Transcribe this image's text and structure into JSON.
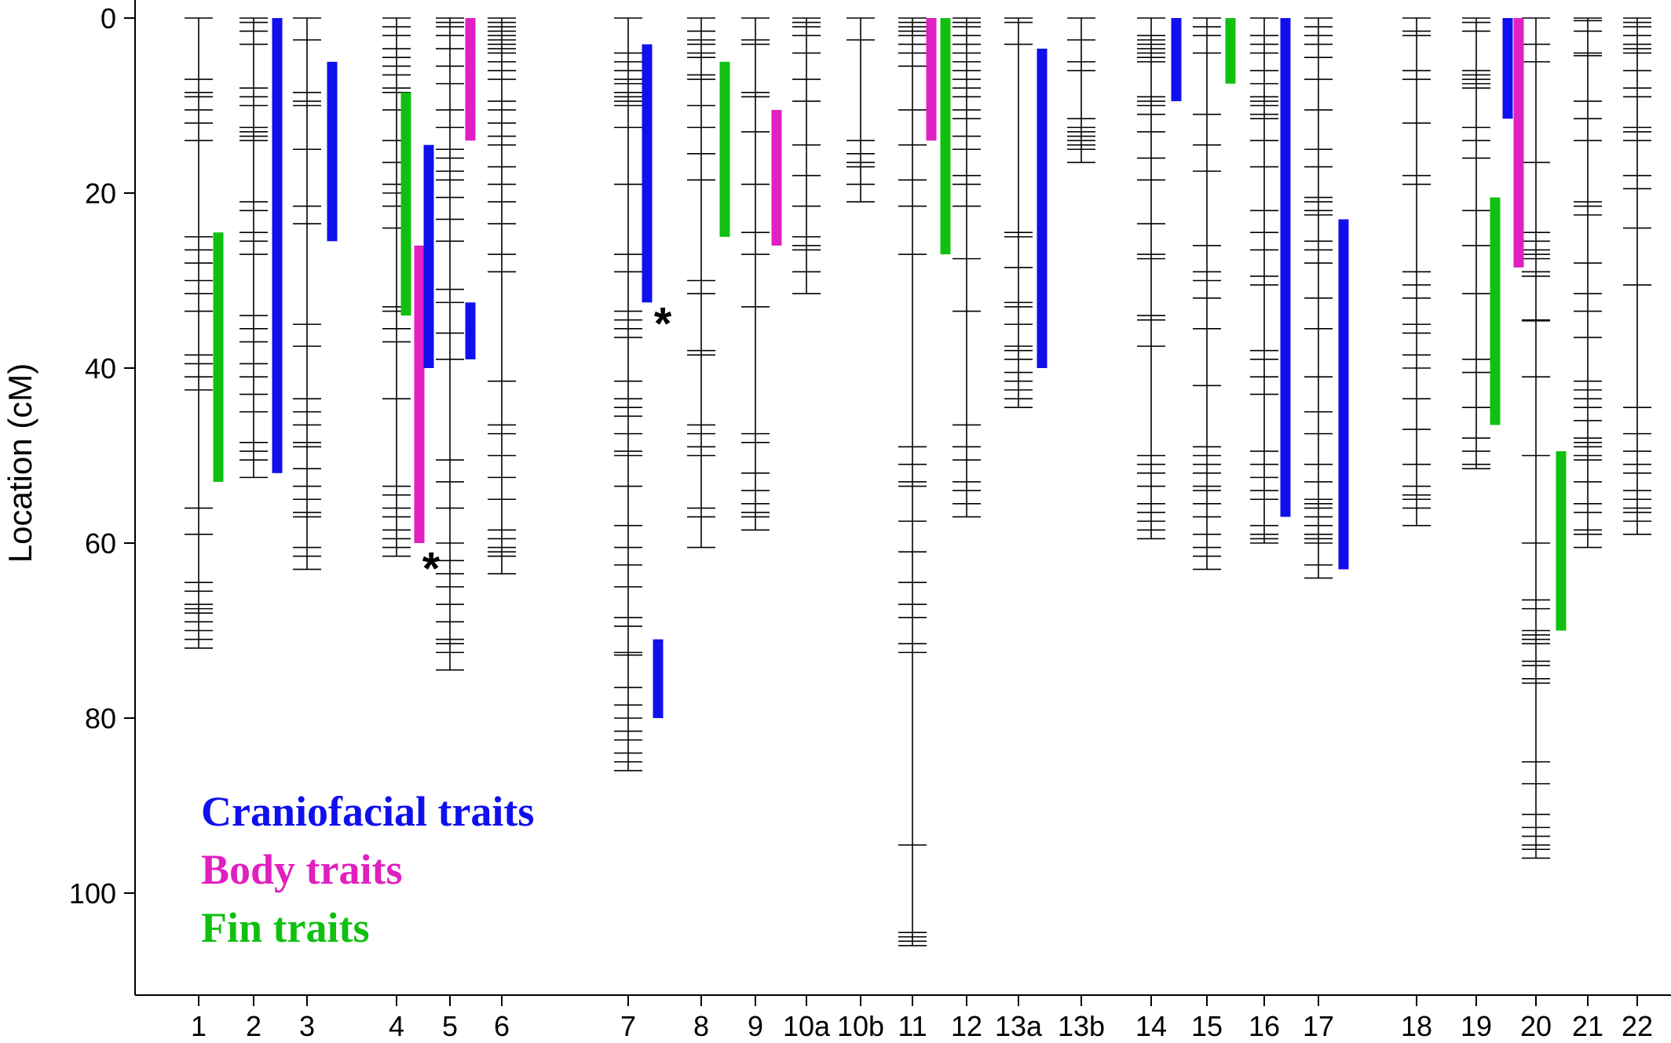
{
  "chart_data": {
    "type": "linkage-map",
    "ylabel": "Location (cM)",
    "yticks": [
      0,
      20,
      40,
      60,
      80,
      100
    ],
    "ylim": [
      0,
      111
    ],
    "colors": {
      "Craniofacial traits": "#1010ee",
      "Body traits": "#e020c0",
      "Fin traits": "#10c010"
    },
    "legend": [
      {
        "label": "Craniofacial traits",
        "color": "#1010ee"
      },
      {
        "label": "Body traits",
        "color": "#e020c0"
      },
      {
        "label": "Fin traits",
        "color": "#10c010"
      }
    ],
    "linkage_groups": [
      {
        "name": "1",
        "length": 72,
        "markers": [
          0,
          7,
          8.5,
          9,
          10.5,
          12,
          14,
          25,
          26.5,
          28,
          30,
          31.5,
          33.5,
          38.5,
          39.5,
          41,
          42.5,
          56,
          59,
          64.5,
          65.5,
          67,
          67.5,
          68,
          69,
          70,
          71,
          72
        ]
      },
      {
        "name": "2",
        "length": 52.5,
        "markers": [
          0,
          0.5,
          1.5,
          3,
          8,
          9,
          10,
          12.5,
          13,
          13.5,
          14,
          21,
          22,
          24.5,
          25.5,
          27,
          34,
          35.5,
          37,
          39.5,
          41,
          43,
          45,
          48.5,
          49.5,
          50.5,
          52.5
        ]
      },
      {
        "name": "3",
        "length": 63,
        "markers": [
          0,
          2.5,
          8.5,
          9.5,
          10,
          15,
          21.5,
          23.5,
          35,
          37.5,
          43.5,
          45,
          46.5,
          48.5,
          49,
          51.5,
          53.5,
          55,
          56.5,
          57,
          60.5,
          61.5,
          63
        ]
      },
      {
        "name": "4",
        "length": 61.5,
        "markers": [
          0,
          1,
          2,
          3.5,
          4.5,
          5.5,
          6.5,
          8,
          8.5,
          10.5,
          14,
          16.5,
          19,
          20,
          21.5,
          24,
          33,
          33.5,
          35.5,
          37,
          43.5,
          53.5,
          54.5,
          56,
          57,
          58.5,
          59.5,
          60.5,
          61.5
        ]
      },
      {
        "name": "5",
        "length": 74.5,
        "markers": [
          0,
          0.5,
          1,
          2,
          3.5,
          5.5,
          7.5,
          10.5,
          12.5,
          15,
          16,
          17.5,
          18.5,
          20.5,
          23,
          25.5,
          31,
          32.5,
          36,
          39,
          50.5,
          53,
          56,
          60,
          62,
          63.5,
          65,
          67,
          69,
          71,
          71.5,
          72.5,
          74.5
        ]
      },
      {
        "name": "6",
        "length": 63.5,
        "markers": [
          0,
          0.5,
          1,
          1.5,
          2,
          2.5,
          3,
          3.5,
          4,
          5,
          6,
          7,
          9.5,
          10.5,
          12,
          13.5,
          14.5,
          17,
          19,
          21,
          23.5,
          27,
          29,
          41.5,
          46.5,
          47.5,
          50,
          52.5,
          55,
          58.5,
          59.5,
          60.5,
          61,
          61.5,
          63.5
        ]
      },
      {
        "name": "7",
        "length": 86,
        "markers": [
          0,
          4,
          5,
          6,
          7,
          7.5,
          8.5,
          9,
          9.5,
          10,
          12.5,
          19,
          27,
          29,
          33.5,
          34.5,
          35.5,
          36.5,
          41.5,
          43.5,
          44.5,
          45.5,
          47.5,
          49.5,
          50,
          53.5,
          58,
          60.5,
          62.5,
          65,
          68.5,
          69.5,
          72.5,
          72.8,
          76.5,
          78.5,
          80,
          81.5,
          82.5,
          84,
          85,
          86
        ]
      },
      {
        "name": "8",
        "length": 60.5,
        "markers": [
          0,
          1.5,
          2.5,
          3,
          4,
          4.5,
          6.5,
          7,
          10,
          12.5,
          15.5,
          18.5,
          30,
          31.5,
          38,
          38.5,
          46.5,
          47.5,
          49,
          50,
          56,
          57,
          60.5
        ]
      },
      {
        "name": "9",
        "length": 58.5,
        "markers": [
          0,
          2.5,
          3,
          8.5,
          9,
          13,
          19,
          24.5,
          27,
          33,
          47.5,
          48.5,
          52,
          54,
          55.5,
          56.5,
          57,
          58.5
        ]
      },
      {
        "name": "10a",
        "length": 31.5,
        "markers": [
          0,
          0.5,
          1,
          2,
          4,
          7,
          9.5,
          14.5,
          18,
          21.5,
          25,
          26,
          26.5,
          29,
          31.5
        ]
      },
      {
        "name": "10b",
        "length": 21,
        "markers": [
          0,
          2.5,
          14,
          15.5,
          16.5,
          17,
          19,
          21
        ]
      },
      {
        "name": "11",
        "length": 106,
        "markers": [
          0,
          0.5,
          1,
          1.5,
          2,
          3,
          4,
          5.5,
          10.5,
          14.5,
          18.5,
          21.5,
          27,
          49,
          51,
          53,
          53.5,
          57.5,
          61,
          64.5,
          67,
          68.5,
          71.5,
          72.5,
          94.5,
          104.5,
          105,
          105.5,
          106
        ]
      },
      {
        "name": "12",
        "length": 57,
        "markers": [
          0,
          0.5,
          1,
          2,
          3,
          4,
          5,
          6,
          7,
          8,
          9,
          10.5,
          11.5,
          13.5,
          15,
          18,
          19,
          21.5,
          27.5,
          33.5,
          46.5,
          49,
          50.5,
          53,
          54,
          55.5,
          57
        ]
      },
      {
        "name": "13a",
        "length": 44.5,
        "markers": [
          0,
          0.5,
          3,
          24.5,
          25,
          28.5,
          32.5,
          33,
          35,
          37.5,
          38,
          39,
          40.5,
          41.5,
          42.5,
          43.5,
          44.5
        ]
      },
      {
        "name": "13b",
        "length": 16.5,
        "markers": [
          0,
          2.5,
          5,
          6,
          11.5,
          12.5,
          13,
          13.5,
          14,
          14.5,
          15,
          16.5
        ]
      },
      {
        "name": "14",
        "length": 59.5,
        "markers": [
          0,
          2,
          2.5,
          3,
          3.5,
          4,
          4.5,
          5,
          9,
          9.5,
          10,
          11,
          13,
          16,
          18.5,
          23.5,
          27,
          27.5,
          34,
          34.5,
          37.5,
          50,
          51,
          52,
          53.5,
          55.5,
          56.5,
          57.5,
          58.5,
          59.5
        ]
      },
      {
        "name": "15",
        "length": 63,
        "markers": [
          0,
          1,
          2,
          4,
          11,
          14.5,
          17.5,
          26,
          29,
          30,
          32,
          35.5,
          42,
          49,
          50,
          51,
          52,
          53.5,
          54,
          55.5,
          57,
          59,
          60.5,
          61.5,
          63
        ]
      },
      {
        "name": "16",
        "length": 60,
        "markers": [
          0,
          2,
          3,
          4,
          6,
          7.5,
          9,
          9.5,
          10,
          11,
          11.5,
          14,
          17,
          22,
          24.5,
          26.5,
          29.5,
          30.5,
          38,
          39,
          41,
          43,
          49.5,
          51,
          52.5,
          54,
          55,
          58,
          59,
          59.5,
          60
        ]
      },
      {
        "name": "17",
        "length": 64,
        "markers": [
          0,
          1,
          2,
          3,
          4.5,
          7,
          10.5,
          15,
          17,
          20.5,
          21,
          22,
          22.5,
          25.5,
          26.5,
          28,
          32,
          35.5,
          41,
          45,
          47.5,
          51,
          53,
          55,
          55.5,
          56,
          57,
          58,
          59,
          59.5,
          60,
          62.5,
          64
        ]
      },
      {
        "name": "18",
        "length": 58,
        "markers": [
          0,
          1.5,
          2,
          6,
          7,
          12,
          18,
          19,
          29,
          30.5,
          32,
          35,
          36,
          38.5,
          40,
          43.5,
          47,
          51,
          53.5,
          54.5,
          55,
          56,
          58
        ]
      },
      {
        "name": "19",
        "length": 51.5,
        "markers": [
          0,
          0.5,
          1.5,
          6,
          6.5,
          7,
          7.5,
          8,
          12.5,
          14,
          16,
          22,
          26,
          31.5,
          39,
          40.5,
          44.5,
          48,
          49.5,
          51,
          51.5
        ]
      },
      {
        "name": "20",
        "length": 96,
        "markers": [
          0,
          3,
          5,
          16.5,
          24.5,
          25.5,
          26.5,
          27,
          27.5,
          29,
          29.5,
          34.5,
          34.6,
          41,
          50,
          60,
          66.5,
          67.5,
          70,
          70.5,
          71,
          71.5,
          73.5,
          74,
          75.5,
          76,
          85,
          87.5,
          91,
          92.5,
          93.5,
          94.5,
          95,
          96
        ]
      },
      {
        "name": "21",
        "length": 60.5,
        "markers": [
          0,
          0.3,
          1.5,
          4,
          4.3,
          9.5,
          11.5,
          14,
          21,
          21.5,
          22.5,
          28,
          31.5,
          33.5,
          36.5,
          41.5,
          42.5,
          43.5,
          44.5,
          46,
          48,
          48.5,
          49,
          50,
          50.5,
          53,
          55.5,
          56.5,
          58.5,
          59,
          60.5
        ]
      },
      {
        "name": "22",
        "length": 59,
        "markers": [
          0,
          0.5,
          1,
          2,
          3,
          3.5,
          4,
          6,
          8,
          9,
          12.5,
          13,
          14,
          18,
          19.5,
          24,
          30.5,
          44.5,
          47.5,
          49.5,
          51,
          52,
          54,
          55,
          56,
          56.5,
          57.5,
          59
        ]
      }
    ],
    "qtl_bars": [
      {
        "group": "1",
        "trait": "Fin traits",
        "from": 24.5,
        "to": 53
      },
      {
        "group": "2",
        "trait": "Craniofacial traits",
        "from": 0,
        "to": 52
      },
      {
        "group": "3",
        "trait": "Craniofacial traits",
        "from": 5,
        "to": 25.5
      },
      {
        "group": "4",
        "trait": "Fin traits",
        "from": 8.5,
        "to": 34,
        "slot": 1
      },
      {
        "group": "4",
        "trait": "Body traits",
        "from": 26,
        "to": 60,
        "slot": 2
      },
      {
        "group": "4",
        "trait": "Craniofacial traits",
        "from": 14.5,
        "to": 40,
        "slot": 3
      },
      {
        "group": "5",
        "trait": "Body traits",
        "from": 0,
        "to": 14
      },
      {
        "group": "5",
        "trait": "Craniofacial traits",
        "from": 32.5,
        "to": 39
      },
      {
        "group": "7",
        "trait": "Craniofacial traits",
        "from": 3,
        "to": 32.5,
        "slot": 1
      },
      {
        "group": "7",
        "trait": "Craniofacial traits",
        "from": 71,
        "to": 80,
        "slot": 2
      },
      {
        "group": "8",
        "trait": "Fin traits",
        "from": 5,
        "to": 25
      },
      {
        "group": "9",
        "trait": "Body traits",
        "from": 10.5,
        "to": 26
      },
      {
        "group": "11",
        "trait": "Body traits",
        "from": 0,
        "to": 14,
        "slot": 1
      },
      {
        "group": "11",
        "trait": "Fin traits",
        "from": 0,
        "to": 27,
        "slot": 2
      },
      {
        "group": "13a",
        "trait": "Craniofacial traits",
        "from": 3.5,
        "to": 40
      },
      {
        "group": "14",
        "trait": "Craniofacial traits",
        "from": 0,
        "to": 9.5
      },
      {
        "group": "15",
        "trait": "Fin traits",
        "from": 0,
        "to": 7.5
      },
      {
        "group": "16",
        "trait": "Craniofacial traits",
        "from": 0,
        "to": 57
      },
      {
        "group": "17",
        "trait": "Craniofacial traits",
        "from": 23,
        "to": 63
      },
      {
        "group": "19",
        "trait": "Fin traits",
        "from": 20.5,
        "to": 46.5,
        "slot": 1
      },
      {
        "group": "19",
        "trait": "Craniofacial traits",
        "from": 0,
        "to": 11.5,
        "slot": 2
      },
      {
        "group": "19",
        "trait": "Body traits",
        "from": 0,
        "to": 28.5,
        "slot": 3
      },
      {
        "group": "20",
        "trait": "Fin traits",
        "from": 49.5,
        "to": 70
      }
    ],
    "annotations": [
      {
        "text": "*",
        "group": "4",
        "at": 61.5
      },
      {
        "text": "*",
        "group": "7",
        "at": 33.5
      }
    ]
  }
}
